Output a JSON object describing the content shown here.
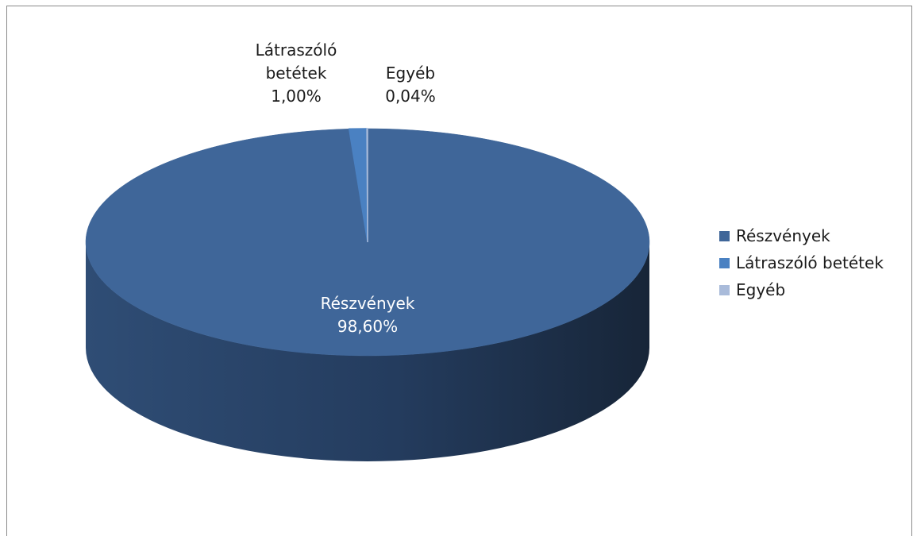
{
  "chart_data": {
    "type": "pie",
    "title": "",
    "slices": [
      {
        "label": "Részvények",
        "value": 98.6,
        "value_label": "98,60%",
        "color": "#3F6699"
      },
      {
        "label": "Látraszóló betétek",
        "value": 1.0,
        "value_label": "1,00%",
        "color": "#4A81C2"
      },
      {
        "label": "Egyéb",
        "value": 0.04,
        "value_label": "0,04%",
        "color": "#A9BBDA"
      }
    ],
    "legend": {
      "placement": "right",
      "entries": [
        "Részvények",
        "Látraszóló betétek",
        "Egyéb"
      ]
    },
    "data_labels": {
      "main_name": "Részvények",
      "main_value": "98,60%",
      "deposit_name_line1": "Látraszóló",
      "deposit_name_line2": "betétek",
      "deposit_value": "1,00%",
      "other_name": "Egyéb",
      "other_value": "0,04%"
    },
    "style": "3d-pie",
    "colors": {
      "side_dark": "#1B2C42",
      "side_mid": "#2F4D75",
      "label_dark": "#1a1a1a",
      "label_light": "#ffffff"
    }
  }
}
